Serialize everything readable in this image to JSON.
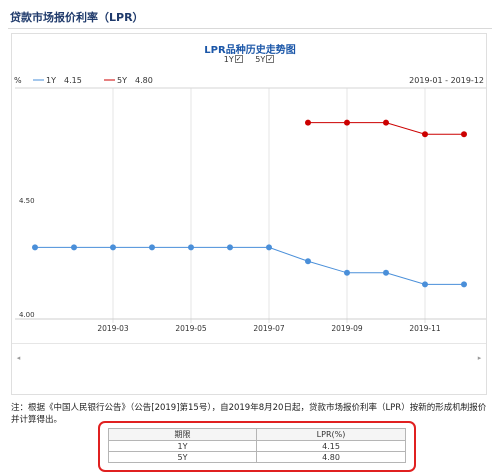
{
  "page": {
    "title": "贷款市场报价利率（LPR）"
  },
  "chart_data": {
    "type": "line",
    "title": "LPR品种历史走势图",
    "ylabel": "%",
    "date_range": "2019-01 - 2019-12",
    "x": [
      "2019-01",
      "2019-02",
      "2019-03",
      "2019-04",
      "2019-05",
      "2019-06",
      "2019-07",
      "2019-08",
      "2019-09",
      "2019-10",
      "2019-11",
      "2019-12"
    ],
    "x_tick_labels": [
      "2019-03",
      "2019-05",
      "2019-07",
      "2019-09",
      "2019-11"
    ],
    "y_tick_labels": [
      "4.50",
      "4.00"
    ],
    "ylim": [
      4.0,
      5.0
    ],
    "grid": "vertical",
    "legend_position": "top-left",
    "series": [
      {
        "name": "1Y",
        "legend_value": "4.15",
        "color": "#4a8fd9",
        "values": [
          4.31,
          4.31,
          4.31,
          4.31,
          4.31,
          4.31,
          4.31,
          4.25,
          4.2,
          4.2,
          4.15,
          4.15
        ]
      },
      {
        "name": "5Y",
        "legend_value": "4.80",
        "color": "#cc0000",
        "values": [
          null,
          null,
          null,
          null,
          null,
          null,
          null,
          4.85,
          4.85,
          4.85,
          4.8,
          4.8
        ]
      }
    ]
  },
  "checkbox_labels": [
    "1Y",
    "5Y"
  ],
  "scrollbar": {
    "left_arrow": "◂",
    "right_arrow": "▸"
  },
  "note": "注：根据《中国人民银行公告》（公告[2019]第15号），自2019年8月20日起，贷款市场报价利率（LPR）按新的形成机制报价并计算得出。",
  "table": {
    "headers": [
      "期限",
      "LPR(%)"
    ],
    "rows": [
      {
        "term": "1Y",
        "rate": "4.15"
      },
      {
        "term": "5Y",
        "rate": "4.80"
      }
    ]
  }
}
